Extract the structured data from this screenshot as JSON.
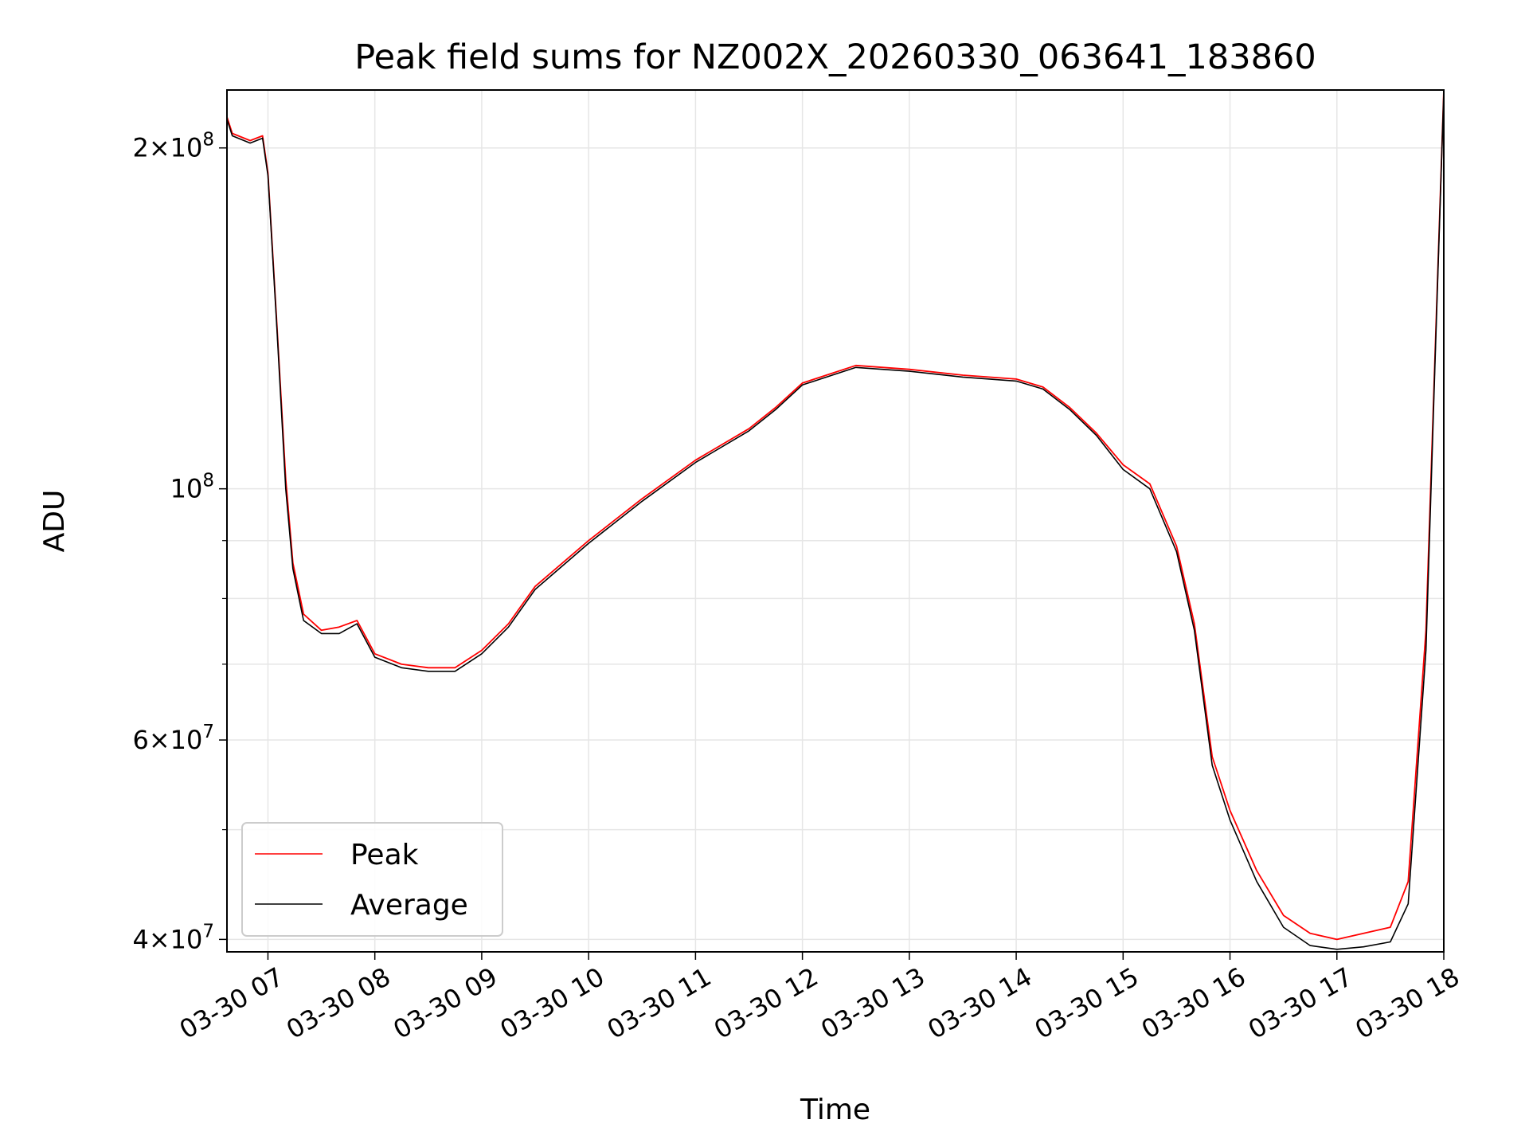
{
  "chart_data": {
    "type": "line",
    "title": "Peak field sums for NZ002X_20260330_063641_183860",
    "xlabel": "Time",
    "ylabel": "ADU",
    "yscale": "log",
    "xlim": [
      "03-30 06:37",
      "03-30 18:00"
    ],
    "ylim": [
      39000000,
      225000000
    ],
    "x_tick_labels": [
      "03-30 07",
      "03-30 08",
      "03-30 09",
      "03-30 10",
      "03-30 11",
      "03-30 12",
      "03-30 13",
      "03-30 14",
      "03-30 15",
      "03-30 16",
      "03-30 17",
      "03-30 18"
    ],
    "y_ticks": [
      {
        "value": 40000000,
        "base": "4×10",
        "exp": "7"
      },
      {
        "value": 60000000,
        "base": "6×10",
        "exp": "7"
      },
      {
        "value": 100000000,
        "base": "10",
        "exp": "8"
      },
      {
        "value": 200000000,
        "base": "2×10",
        "exp": "8"
      }
    ],
    "grid": true,
    "legend_position": "lower-left",
    "colors": {
      "Peak": "#ff0000",
      "Average": "#000000"
    },
    "series": [
      {
        "name": "Peak",
        "color": "#ff0000",
        "x": [
          "03-30 06:37",
          "03-30 06:40",
          "03-30 06:50",
          "03-30 06:57",
          "03-30 07:00",
          "03-30 07:05",
          "03-30 07:10",
          "03-30 07:14",
          "03-30 07:20",
          "03-30 07:30",
          "03-30 07:40",
          "03-30 07:50",
          "03-30 08:00",
          "03-30 08:15",
          "03-30 08:30",
          "03-30 08:45",
          "03-30 09:00",
          "03-30 09:15",
          "03-30 09:30",
          "03-30 10:00",
          "03-30 10:30",
          "03-30 11:00",
          "03-30 11:30",
          "03-30 11:45",
          "03-30 12:00",
          "03-30 12:30",
          "03-30 13:00",
          "03-30 13:30",
          "03-30 14:00",
          "03-30 14:15",
          "03-30 14:30",
          "03-30 14:45",
          "03-30 15:00",
          "03-30 15:15",
          "03-30 15:30",
          "03-30 15:40",
          "03-30 15:50",
          "03-30 16:00",
          "03-30 16:15",
          "03-30 16:30",
          "03-30 16:45",
          "03-30 17:00",
          "03-30 17:15",
          "03-30 17:30",
          "03-30 17:40",
          "03-30 17:50",
          "03-30 17:55",
          "03-30 18:00"
        ],
        "y": [
          213000000,
          206000000,
          203000000,
          205000000,
          190000000,
          140000000,
          102000000,
          86000000,
          77500000,
          75000000,
          75500000,
          76500000,
          71500000,
          70000000,
          69500000,
          69500000,
          72000000,
          76000000,
          82000000,
          90000000,
          98000000,
          106000000,
          113000000,
          118000000,
          124000000,
          128500000,
          127500000,
          126000000,
          125000000,
          123000000,
          118000000,
          112000000,
          105000000,
          101000000,
          89000000,
          76000000,
          58000000,
          52000000,
          46000000,
          42000000,
          40500000,
          40000000,
          40500000,
          41000000,
          45000000,
          75000000,
          130000000,
          225000000
        ]
      },
      {
        "name": "Average",
        "color": "#000000",
        "x": [
          "03-30 06:37",
          "03-30 06:40",
          "03-30 06:50",
          "03-30 06:57",
          "03-30 07:00",
          "03-30 07:05",
          "03-30 07:10",
          "03-30 07:14",
          "03-30 07:20",
          "03-30 07:30",
          "03-30 07:40",
          "03-30 07:50",
          "03-30 08:00",
          "03-30 08:15",
          "03-30 08:30",
          "03-30 08:45",
          "03-30 09:00",
          "03-30 09:15",
          "03-30 09:30",
          "03-30 10:00",
          "03-30 10:30",
          "03-30 11:00",
          "03-30 11:30",
          "03-30 11:45",
          "03-30 12:00",
          "03-30 12:30",
          "03-30 13:00",
          "03-30 13:30",
          "03-30 14:00",
          "03-30 14:15",
          "03-30 14:30",
          "03-30 14:45",
          "03-30 15:00",
          "03-30 15:15",
          "03-30 15:30",
          "03-30 15:40",
          "03-30 15:50",
          "03-30 16:00",
          "03-30 16:15",
          "03-30 16:30",
          "03-30 16:45",
          "03-30 17:00",
          "03-30 17:15",
          "03-30 17:30",
          "03-30 17:40",
          "03-30 17:50",
          "03-30 17:55",
          "03-30 18:00"
        ],
        "y": [
          212000000,
          205000000,
          202000000,
          204000000,
          189000000,
          139000000,
          100000000,
          85000000,
          76500000,
          74500000,
          74500000,
          76000000,
          71000000,
          69500000,
          69000000,
          69000000,
          71500000,
          75500000,
          81500000,
          89500000,
          97500000,
          105500000,
          112500000,
          117500000,
          123500000,
          128000000,
          127000000,
          125500000,
          124500000,
          122500000,
          117500000,
          111500000,
          104000000,
          100000000,
          88000000,
          75000000,
          57000000,
          51000000,
          45000000,
          41000000,
          39500000,
          39200000,
          39400000,
          39800000,
          43000000,
          72000000,
          128000000,
          224000000
        ]
      }
    ]
  }
}
